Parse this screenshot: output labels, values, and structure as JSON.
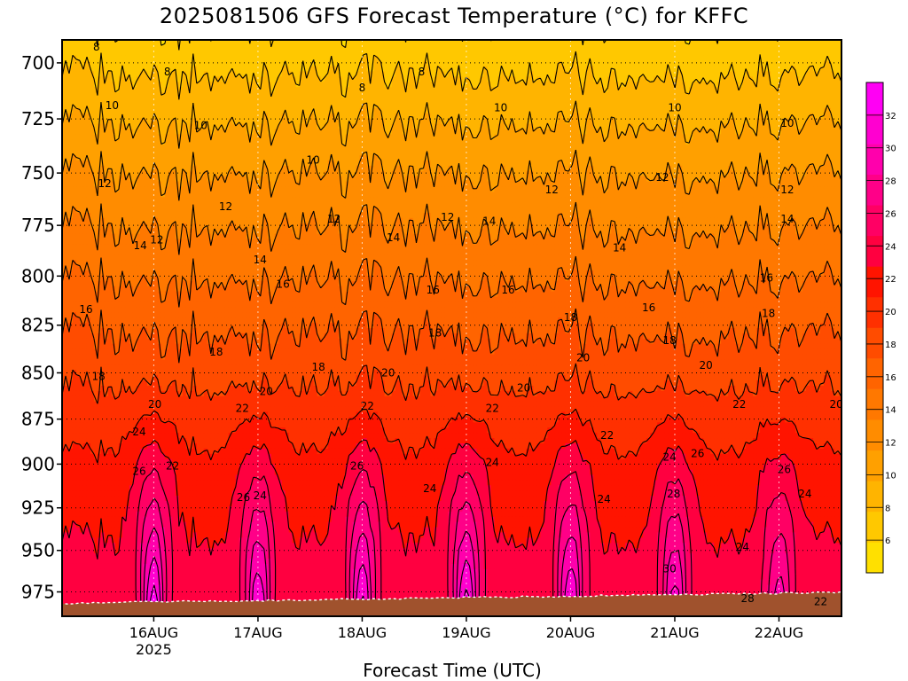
{
  "chart_data": {
    "type": "heatmap",
    "title": "2025081506 GFS Forecast Temperature (°C) for KFFC",
    "xlabel": "Forecast Time (UTC)",
    "ylabel": "",
    "y_scale": "log",
    "ylim": [
      690,
      990
    ],
    "xlim": [
      0.12,
      7.6
    ],
    "y_ticks": [
      700,
      725,
      750,
      775,
      800,
      825,
      850,
      875,
      900,
      925,
      950,
      975
    ],
    "x_ticks": [
      {
        "x": 1,
        "label": "16AUG",
        "sublabel": "2025"
      },
      {
        "x": 2,
        "label": "17AUG",
        "sublabel": ""
      },
      {
        "x": 3,
        "label": "18AUG",
        "sublabel": ""
      },
      {
        "x": 4,
        "label": "19AUG",
        "sublabel": ""
      },
      {
        "x": 5,
        "label": "20AUG",
        "sublabel": ""
      },
      {
        "x": 6,
        "label": "21AUG",
        "sublabel": ""
      },
      {
        "x": 7,
        "label": "22AUG",
        "sublabel": ""
      }
    ],
    "grid": true,
    "colorbar": {
      "ticks": [
        6,
        8,
        10,
        12,
        14,
        16,
        18,
        20,
        22,
        24,
        26,
        28,
        30,
        32
      ],
      "range": [
        4,
        34
      ],
      "colors": [
        "#ffe000",
        "#ffc800",
        "#ffb400",
        "#ffa000",
        "#ff8c00",
        "#ff7800",
        "#ff6400",
        "#ff4c00",
        "#ff3000",
        "#ff1400",
        "#ff0040",
        "#ff0064",
        "#ff0088",
        "#ff00ac",
        "#ff00d0",
        "#ff00f4"
      ]
    },
    "surface_color": "#a0522d",
    "contour_interval": 2,
    "days": [
      {
        "x": 1,
        "max_temp": 33
      },
      {
        "x": 2,
        "max_temp": 32
      },
      {
        "x": 3,
        "max_temp": 32
      },
      {
        "x": 4,
        "max_temp": 33
      },
      {
        "x": 5,
        "max_temp": 32
      },
      {
        "x": 6,
        "max_temp": 31
      },
      {
        "x": 7,
        "max_temp": 29
      }
    ],
    "profile": [
      {
        "p": 700,
        "t": 7.5
      },
      {
        "p": 725,
        "t": 9.8
      },
      {
        "p": 750,
        "t": 12.0
      },
      {
        "p": 775,
        "t": 13.9
      },
      {
        "p": 800,
        "t": 15.8
      },
      {
        "p": 825,
        "t": 17.7
      },
      {
        "p": 850,
        "t": 19.3
      },
      {
        "p": 875,
        "t": 20.9
      },
      {
        "p": 900,
        "t": 22.4
      },
      {
        "p": 925,
        "t": 23.4
      },
      {
        "p": 950,
        "t": 24.2
      },
      {
        "p": 975,
        "t": 25.0
      }
    ],
    "contour_labels": [
      {
        "x": 0.45,
        "p": 693,
        "text": "8"
      },
      {
        "x": 1.13,
        "p": 704,
        "text": "8"
      },
      {
        "x": 3.0,
        "p": 711,
        "text": "8"
      },
      {
        "x": 3.57,
        "p": 704,
        "text": "8"
      },
      {
        "x": 0.6,
        "p": 719,
        "text": "10"
      },
      {
        "x": 1.45,
        "p": 728,
        "text": "10"
      },
      {
        "x": 2.53,
        "p": 744,
        "text": "10"
      },
      {
        "x": 4.33,
        "p": 720,
        "text": "10"
      },
      {
        "x": 6.0,
        "p": 720,
        "text": "10"
      },
      {
        "x": 7.08,
        "p": 727,
        "text": "10"
      },
      {
        "x": 0.53,
        "p": 755,
        "text": "12"
      },
      {
        "x": 1.03,
        "p": 782,
        "text": "12"
      },
      {
        "x": 1.69,
        "p": 766,
        "text": "12"
      },
      {
        "x": 2.73,
        "p": 772,
        "text": "12"
      },
      {
        "x": 3.82,
        "p": 771,
        "text": "12"
      },
      {
        "x": 4.82,
        "p": 758,
        "text": "12"
      },
      {
        "x": 5.88,
        "p": 752,
        "text": "12"
      },
      {
        "x": 7.08,
        "p": 758,
        "text": "12"
      },
      {
        "x": 0.87,
        "p": 785,
        "text": "14"
      },
      {
        "x": 2.02,
        "p": 792,
        "text": "14"
      },
      {
        "x": 3.3,
        "p": 781,
        "text": "14"
      },
      {
        "x": 4.22,
        "p": 773,
        "text": "14"
      },
      {
        "x": 5.47,
        "p": 786,
        "text": "14"
      },
      {
        "x": 7.08,
        "p": 772,
        "text": "14"
      },
      {
        "x": 0.35,
        "p": 817,
        "text": "16"
      },
      {
        "x": 2.24,
        "p": 804,
        "text": "16"
      },
      {
        "x": 3.68,
        "p": 807,
        "text": "16"
      },
      {
        "x": 4.4,
        "p": 807,
        "text": "16"
      },
      {
        "x": 5.75,
        "p": 816,
        "text": "16"
      },
      {
        "x": 6.88,
        "p": 801,
        "text": "16"
      },
      {
        "x": 0.47,
        "p": 852,
        "text": "18"
      },
      {
        "x": 1.6,
        "p": 839,
        "text": "18"
      },
      {
        "x": 2.58,
        "p": 847,
        "text": "18"
      },
      {
        "x": 3.7,
        "p": 829,
        "text": "18"
      },
      {
        "x": 5.0,
        "p": 821,
        "text": "18"
      },
      {
        "x": 5.95,
        "p": 833,
        "text": "18"
      },
      {
        "x": 6.9,
        "p": 819,
        "text": "18"
      },
      {
        "x": 1.01,
        "p": 867,
        "text": "20"
      },
      {
        "x": 2.08,
        "p": 860,
        "text": "20"
      },
      {
        "x": 3.25,
        "p": 850,
        "text": "20"
      },
      {
        "x": 4.55,
        "p": 858,
        "text": "20"
      },
      {
        "x": 5.12,
        "p": 842,
        "text": "20"
      },
      {
        "x": 6.3,
        "p": 846,
        "text": "20"
      },
      {
        "x": 7.55,
        "p": 867,
        "text": "20"
      },
      {
        "x": 1.18,
        "p": 901,
        "text": "22"
      },
      {
        "x": 1.85,
        "p": 869,
        "text": "22"
      },
      {
        "x": 3.05,
        "p": 868,
        "text": "22"
      },
      {
        "x": 4.25,
        "p": 869,
        "text": "22"
      },
      {
        "x": 5.35,
        "p": 884,
        "text": "22"
      },
      {
        "x": 6.62,
        "p": 867,
        "text": "22"
      },
      {
        "x": 7.4,
        "p": 981,
        "text": "22"
      },
      {
        "x": 0.86,
        "p": 882,
        "text": "24"
      },
      {
        "x": 2.02,
        "p": 918,
        "text": "24"
      },
      {
        "x": 3.65,
        "p": 914,
        "text": "24"
      },
      {
        "x": 4.25,
        "p": 899,
        "text": "24"
      },
      {
        "x": 5.32,
        "p": 920,
        "text": "24"
      },
      {
        "x": 5.95,
        "p": 896,
        "text": "24"
      },
      {
        "x": 6.65,
        "p": 948,
        "text": "24"
      },
      {
        "x": 7.25,
        "p": 917,
        "text": "24"
      },
      {
        "x": 0.86,
        "p": 904,
        "text": "26"
      },
      {
        "x": 1.86,
        "p": 919,
        "text": "26"
      },
      {
        "x": 2.95,
        "p": 901,
        "text": "26"
      },
      {
        "x": 6.22,
        "p": 894,
        "text": "26"
      },
      {
        "x": 7.05,
        "p": 903,
        "text": "26"
      },
      {
        "x": 5.99,
        "p": 917,
        "text": "28"
      },
      {
        "x": 6.7,
        "p": 979,
        "text": "28"
      },
      {
        "x": 5.95,
        "p": 961,
        "text": "30"
      }
    ]
  }
}
